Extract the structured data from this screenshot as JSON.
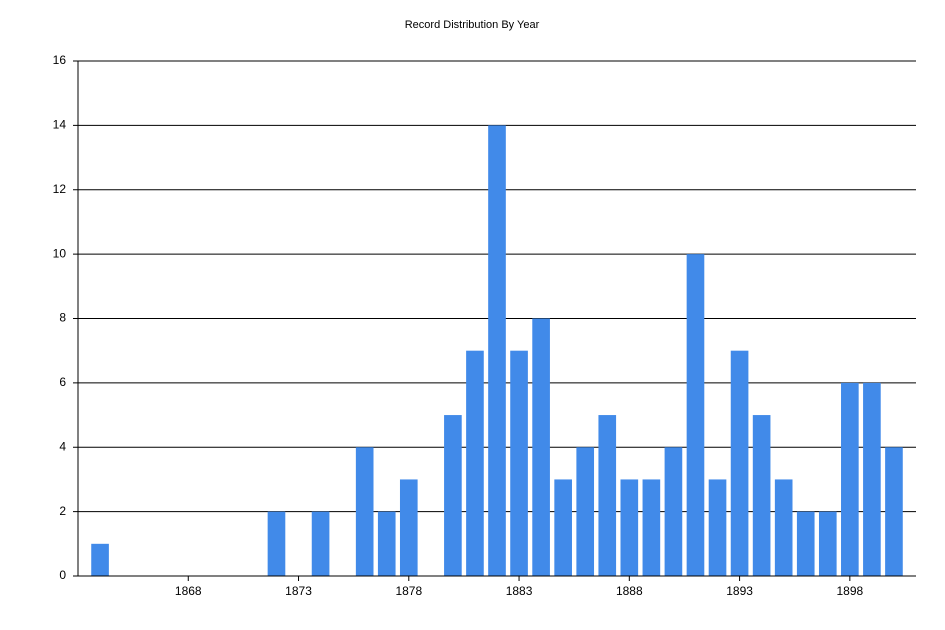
{
  "chart_data": {
    "type": "bar",
    "title": "Record Distribution By Year",
    "x": [
      1864,
      1872,
      1874,
      1876,
      1877,
      1878,
      1880,
      1881,
      1882,
      1883,
      1884,
      1885,
      1886,
      1887,
      1888,
      1889,
      1890,
      1891,
      1892,
      1893,
      1894,
      1895,
      1896,
      1897,
      1898,
      1899,
      1900
    ],
    "values": [
      1,
      2,
      2,
      4,
      2,
      3,
      5,
      7,
      14,
      7,
      8,
      3,
      4,
      5,
      3,
      3,
      4,
      10,
      3,
      7,
      5,
      3,
      2,
      2,
      6,
      6,
      4
    ],
    "color": "#418ae9",
    "xlim": [
      1863,
      1901
    ],
    "xticks": [
      1868,
      1873,
      1878,
      1883,
      1888,
      1893,
      1898
    ],
    "ylim": [
      0,
      16
    ],
    "yticks": [
      0,
      2,
      4,
      6,
      8,
      10,
      12,
      14,
      16
    ],
    "grid": true
  }
}
